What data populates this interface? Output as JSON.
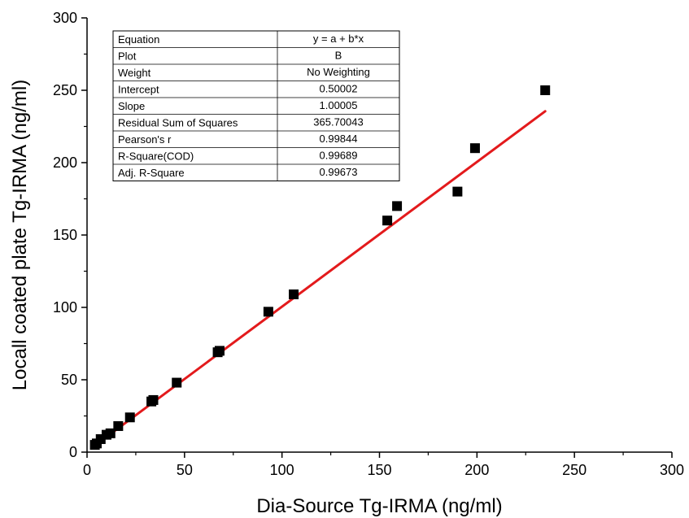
{
  "chart_data": {
    "type": "scatter",
    "xlabel": "Dia-Source Tg-IRMA (ng/ml)",
    "ylabel": "Locall coated plate Tg-IRMA (ng/ml)",
    "xlim": [
      0,
      300
    ],
    "ylim": [
      0,
      300
    ],
    "x_ticks": [
      0,
      50,
      100,
      150,
      200,
      250,
      300
    ],
    "y_ticks": [
      0,
      50,
      100,
      150,
      200,
      250,
      300
    ],
    "grid": false,
    "series": [
      {
        "marker": "square",
        "color": "#000000",
        "points": [
          [
            4,
            5
          ],
          [
            5,
            6
          ],
          [
            7,
            9
          ],
          [
            10,
            12
          ],
          [
            12,
            13
          ],
          [
            16,
            18
          ],
          [
            22,
            24
          ],
          [
            33,
            35
          ],
          [
            34,
            36
          ],
          [
            46,
            48
          ],
          [
            67,
            69
          ],
          [
            68,
            70
          ],
          [
            93,
            97
          ],
          [
            106,
            109
          ],
          [
            154,
            160
          ],
          [
            159,
            170
          ],
          [
            190,
            180
          ],
          [
            199,
            210
          ],
          [
            235,
            250
          ]
        ]
      }
    ],
    "fit": {
      "color": "#e31a1c",
      "intercept": 0.50002,
      "slope": 1.00005,
      "x_range": [
        4,
        235
      ]
    },
    "stats_table": [
      [
        "Equation",
        "y = a + b*x"
      ],
      [
        "Plot",
        "B"
      ],
      [
        "Weight",
        "No Weighting"
      ],
      [
        "Intercept",
        "0.50002"
      ],
      [
        "Slope",
        "1.00005"
      ],
      [
        "Residual Sum of Squares",
        "365.70043"
      ],
      [
        "Pearson's r",
        "0.99844"
      ],
      [
        "R-Square(COD)",
        "0.99689"
      ],
      [
        "Adj. R-Square",
        "0.99673"
      ]
    ]
  }
}
